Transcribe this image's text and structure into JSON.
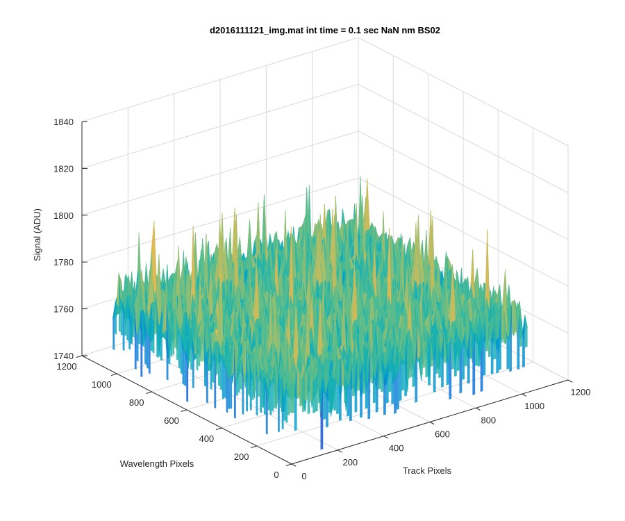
{
  "chart_data": {
    "type": "surface",
    "title": "d2016111121_img.mat int time = 0.1 sec  NaN nm BS02",
    "xlabel": "Track Pixels",
    "ylabel": "Wavelength Pixels",
    "zlabel": "Signal (ADU)",
    "xlim": [
      0,
      1200
    ],
    "ylim": [
      0,
      1200
    ],
    "zlim": [
      1740,
      1840
    ],
    "x_ticks": [
      "0",
      "200",
      "400",
      "600",
      "800",
      "1000",
      "1200"
    ],
    "y_ticks": [
      "0",
      "200",
      "400",
      "600",
      "800",
      "1000",
      "1200"
    ],
    "z_ticks": [
      "1740",
      "1760",
      "1780",
      "1800",
      "1820",
      "1840"
    ],
    "grid": true,
    "surface_extent": {
      "x": [
        0,
        1024
      ],
      "y": [
        0,
        1024
      ]
    },
    "surface_mean": 1770,
    "surface_noise_range": [
      1745,
      1835
    ],
    "colormap": "parula"
  }
}
